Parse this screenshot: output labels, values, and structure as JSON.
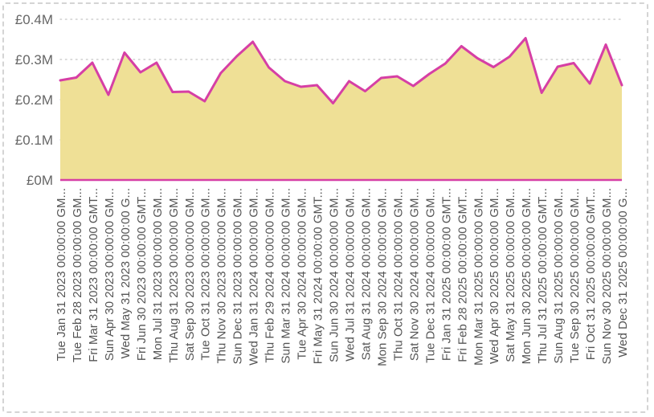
{
  "chart_data": {
    "type": "area",
    "title": "",
    "xlabel": "",
    "ylabel": "",
    "ylim": [
      0,
      0.4
    ],
    "grid": {
      "horizontal": true,
      "vertical": false,
      "style": "dotted"
    },
    "colors": {
      "fill": "#efe096",
      "line": "#d63fa5",
      "grid": "#cfcfcf",
      "tick_text": "#666666"
    },
    "y_ticks": [
      {
        "value": 0,
        "label": "£0M"
      },
      {
        "value": 0.1,
        "label": "£0.1M"
      },
      {
        "value": 0.2,
        "label": "£0.2M"
      },
      {
        "value": 0.3,
        "label": "£0.3M"
      },
      {
        "value": 0.4,
        "label": "£0.4M"
      }
    ],
    "categories": [
      "Tue Jan 31 2023 00:00:00 GM...",
      "Tue Feb 28 2023 00:00:00 GM...",
      "Fri Mar 31 2023 00:00:00 GMT...",
      "Sun Apr 30 2023 00:00:00 GM...",
      "Wed May 31 2023 00:00:00 G...",
      "Fri Jun 30 2023 00:00:00 GMT...",
      "Mon Jul 31 2023 00:00:00 GM...",
      "Thu Aug 31 2023 00:00:00 GM...",
      "Sat Sep 30 2023 00:00:00 GM...",
      "Tue Oct 31 2023 00:00:00 GM...",
      "Thu Nov 30 2023 00:00:00 GM...",
      "Sun Dec 31 2023 00:00:00 GM...",
      "Wed Jan 31 2024 00:00:00 GM...",
      "Thu Feb 29 2024 00:00:00 GM...",
      "Sun Mar 31 2024 00:00:00 GM...",
      "Tue Apr 30 2024 00:00:00 GM...",
      "Fri May 31 2024 00:00:00 GMT...",
      "Sun Jun 30 2024 00:00:00 GM...",
      "Wed Jul 31 2024 00:00:00 GM...",
      "Sat Aug 31 2024 00:00:00 GM...",
      "Mon Sep 30 2024 00:00:00 GM...",
      "Thu Oct 31 2024 00:00:00 GM...",
      "Sat Nov 30 2024 00:00:00 GM...",
      "Tue Dec 31 2024 00:00:00 GM...",
      "Fri Jan 31 2025 00:00:00 GMT...",
      "Fri Feb 28 2025 00:00:00 GMT...",
      "Mon Mar 31 2025 00:00:00 GM...",
      "Wed Apr 30 2025 00:00:00 GM...",
      "Sat May 31 2025 00:00:00 GM...",
      "Mon Jun 30 2025 00:00:00 GM...",
      "Thu Jul 31 2025 00:00:00 GMT...",
      "Sun Aug 31 2025 00:00:00 GM...",
      "Tue Sep 30 2025 00:00:00 GM...",
      "Fri Oct 31 2025 00:00:00 GMT...",
      "Sun Nov 30 2025 00:00:00 GM...",
      "Wed Dec 31 2025 00:00:00 G..."
    ],
    "series": [
      {
        "values": [
          0.248,
          0.255,
          0.292,
          0.212,
          0.317,
          0.268,
          0.292,
          0.219,
          0.22,
          0.196,
          0.266,
          0.308,
          0.344,
          0.28,
          0.246,
          0.232,
          0.236,
          0.191,
          0.246,
          0.221,
          0.254,
          0.258,
          0.234,
          0.264,
          0.29,
          0.333,
          0.303,
          0.281,
          0.307,
          0.353,
          0.217,
          0.282,
          0.291,
          0.24,
          0.337,
          0.236
        ]
      }
    ]
  }
}
